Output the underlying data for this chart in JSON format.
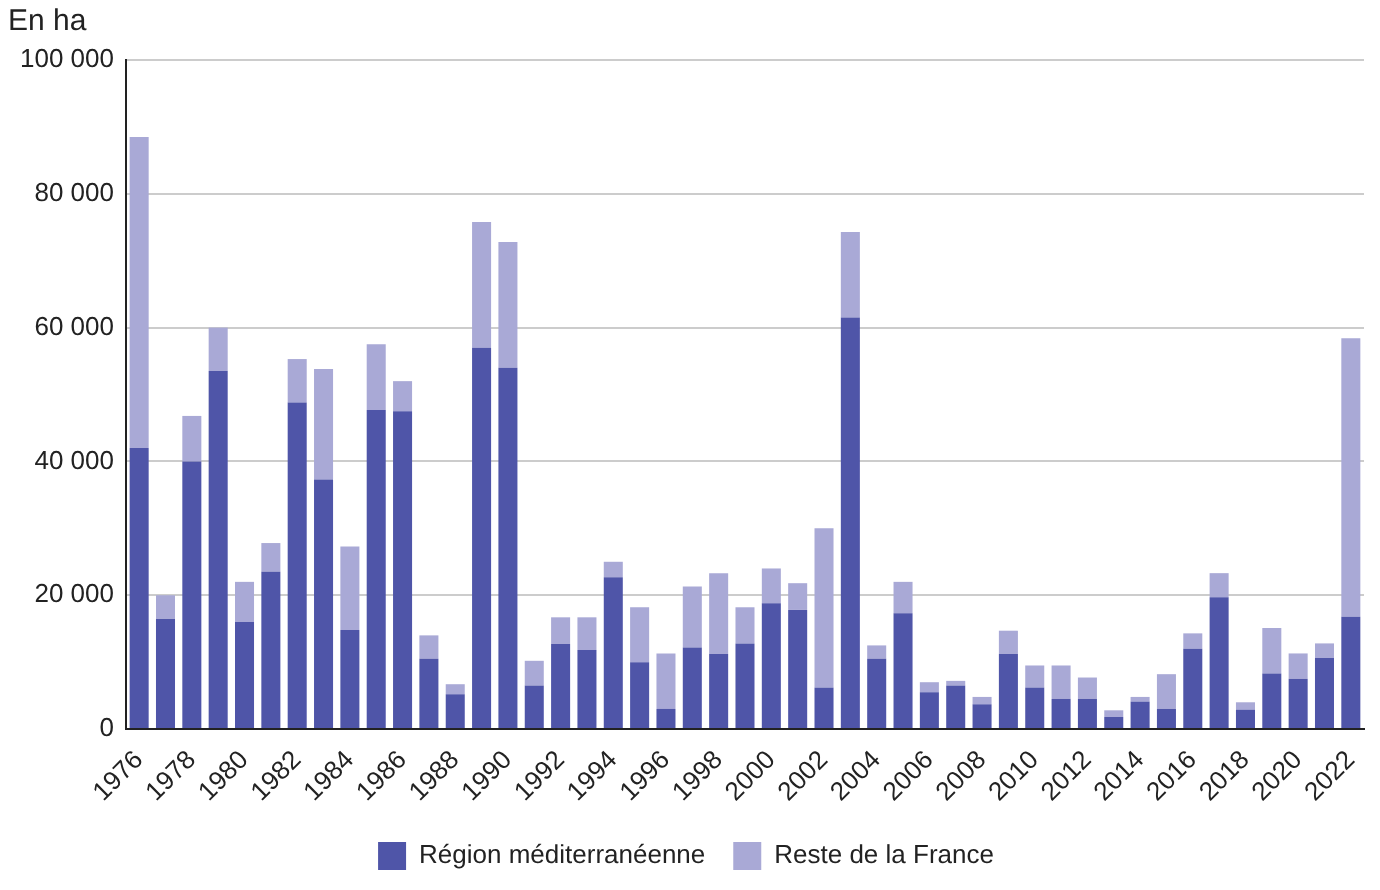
{
  "chart_data": {
    "type": "bar",
    "stacked": true,
    "ylabel": "En ha",
    "categories": [
      "1976",
      null,
      "1978",
      null,
      "1980",
      null,
      "1982",
      null,
      "1984",
      null,
      "1986",
      null,
      "1988",
      null,
      "1990",
      null,
      "1992",
      null,
      "1994",
      null,
      "1996",
      null,
      "1998",
      null,
      "2000",
      null,
      "2002",
      null,
      "2004",
      null,
      "2006",
      null,
      "2008",
      null,
      "2010",
      null,
      "2012",
      null,
      "2014",
      null,
      "2016",
      null,
      "2018",
      null,
      "2020",
      null,
      "2022"
    ],
    "series": [
      {
        "name": "Région méditerranéenne",
        "color": "#4f55a8",
        "values": [
          42000,
          16500,
          40000,
          53500,
          16000,
          23500,
          48800,
          37300,
          14800,
          47700,
          47500,
          10500,
          5200,
          57000,
          54000,
          6500,
          12700,
          11800,
          22700,
          10000,
          3000,
          12200,
          11200,
          12800,
          18800,
          17800,
          6200,
          61500,
          10500,
          17300,
          5500,
          6500,
          3700,
          11200,
          6200,
          4500,
          4500,
          1800,
          4100,
          3000,
          12000,
          19700,
          2900,
          8300,
          7500,
          10600,
          16800
        ]
      },
      {
        "name": "Reste de la France",
        "color": "#a9a9d6",
        "values": [
          46500,
          3500,
          6800,
          6500,
          6000,
          4300,
          6500,
          16500,
          12500,
          9800,
          4500,
          3500,
          1500,
          18800,
          18800,
          3700,
          4000,
          4900,
          2300,
          8200,
          8300,
          9100,
          12100,
          5400,
          5200,
          4000,
          23800,
          12800,
          2000,
          4700,
          1500,
          700,
          1100,
          3500,
          3300,
          5000,
          3200,
          1000,
          700,
          5200,
          2300,
          3600,
          1100,
          6800,
          3800,
          2200,
          41600
        ]
      }
    ],
    "ylim": [
      0,
      100000
    ],
    "yticks": [
      0,
      {
        "value": 20000,
        "label": "20 000"
      },
      {
        "value": 40000,
        "label": "40 000"
      },
      {
        "value": 60000,
        "label": "60 000"
      },
      {
        "value": 80000,
        "label": "80 000"
      },
      {
        "value": 100000,
        "label": "100 000"
      }
    ],
    "grid": "y",
    "legend": "bottom"
  }
}
